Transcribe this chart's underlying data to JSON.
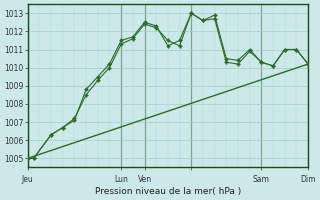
{
  "background_color": "#cce8e8",
  "plot_bg_color": "#cce8e8",
  "grid_color_major": "#aacccc",
  "grid_color_minor": "#b8d8d8",
  "line_color": "#2d6b2d",
  "line_color_dark": "#1a4d1a",
  "xlabel": "Pression niveau de la mer( hPa )",
  "ylim": [
    1004.5,
    1013.5
  ],
  "yticks": [
    1005,
    1006,
    1007,
    1008,
    1009,
    1010,
    1011,
    1012,
    1013
  ],
  "xlim": [
    0,
    24
  ],
  "xtick_positions": [
    0,
    8,
    10,
    14,
    20,
    24
  ],
  "xtick_labels": [
    "Jeu",
    "Lun",
    "Ven",
    "",
    "Sam",
    "Dim"
  ],
  "day_vlines": [
    0,
    8,
    10,
    14,
    20,
    24
  ],
  "line1_x": [
    0,
    0.5,
    2,
    3,
    4,
    5,
    6,
    7,
    8,
    9,
    10,
    11,
    12,
    13,
    14,
    15,
    16,
    17,
    18,
    19,
    20,
    21,
    22,
    23,
    24
  ],
  "line1_y": [
    1005.0,
    1005.0,
    1006.3,
    1006.7,
    1007.1,
    1008.8,
    1009.5,
    1010.2,
    1011.5,
    1011.7,
    1012.5,
    1012.3,
    1011.2,
    1011.5,
    1013.0,
    1012.6,
    1012.9,
    1010.5,
    1010.4,
    1011.0,
    1010.3,
    1010.1,
    1011.0,
    1011.0,
    1010.2
  ],
  "line2_x": [
    0,
    0.5,
    2,
    3,
    4,
    5,
    6,
    7,
    8,
    9,
    10,
    11,
    12,
    13,
    14,
    15,
    16,
    17,
    18,
    19,
    20,
    21,
    22,
    23,
    24
  ],
  "line2_y": [
    1005.0,
    1005.0,
    1006.3,
    1006.7,
    1007.2,
    1008.5,
    1009.3,
    1010.0,
    1011.3,
    1011.6,
    1012.4,
    1012.2,
    1011.5,
    1011.2,
    1013.0,
    1012.6,
    1012.7,
    1010.3,
    1010.2,
    1010.9,
    1010.3,
    1010.1,
    1011.0,
    1011.0,
    1010.2
  ],
  "line3_x": [
    0,
    24
  ],
  "line3_y": [
    1005.0,
    1010.2
  ]
}
